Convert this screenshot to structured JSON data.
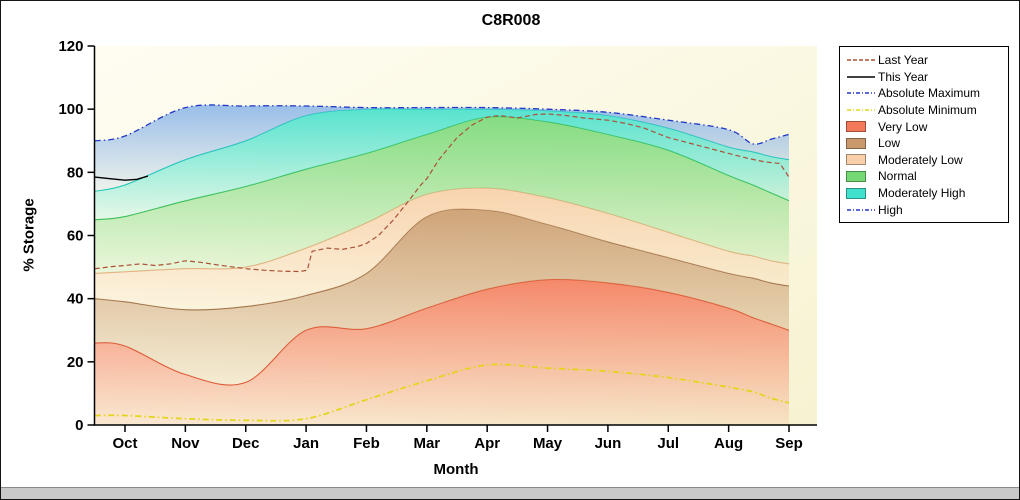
{
  "chart_data": {
    "type": "area",
    "title": "C8R008",
    "xlabel": "Month",
    "ylabel": "% Storage",
    "ylim": [
      0,
      120
    ],
    "x_tick_labels": [
      "Oct",
      "Nov",
      "Dec",
      "Jan",
      "Feb",
      "Mar",
      "Apr",
      "May",
      "Jun",
      "Jul",
      "Aug",
      "Sep"
    ],
    "y_tick_values": [
      0,
      20,
      40,
      60,
      80,
      100,
      120
    ],
    "band_x": [
      -0.5,
      0,
      1,
      2,
      3,
      4,
      5,
      6,
      7,
      8,
      9,
      10,
      10.4,
      10.7,
      11
    ],
    "bands": [
      {
        "name": "Very Low",
        "color": "#f4795a",
        "edge": "#e05535",
        "top": [
          26,
          25,
          16,
          13.5,
          30,
          30.5,
          37,
          43,
          46,
          45,
          42,
          37,
          34,
          32,
          30
        ]
      },
      {
        "name": "Low",
        "color": "#c9996b",
        "edge": "#9c6f45",
        "top": [
          40,
          39,
          36.5,
          37.5,
          41,
          48,
          66,
          68,
          63.5,
          58,
          53,
          48,
          46.5,
          45,
          44
        ]
      },
      {
        "name": "Moderately Low",
        "color": "#f8cfa8",
        "edge": "#eab183",
        "top": [
          48,
          48.5,
          49.5,
          50,
          56,
          64,
          73,
          75,
          72,
          67,
          61,
          55,
          53.5,
          52,
          51
        ]
      },
      {
        "name": "Normal",
        "color": "#74d874",
        "edge": "#3cbc50",
        "top": [
          65,
          66,
          71,
          75.5,
          81,
          86,
          92,
          97.5,
          96,
          92,
          87,
          79,
          76,
          73.5,
          71
        ]
      },
      {
        "name": "Moderately High",
        "color": "#40e0cc",
        "edge": "#16c8b4",
        "top": [
          74,
          76,
          84,
          90,
          98,
          100,
          100,
          100,
          99.5,
          98,
          94,
          88,
          86.5,
          85,
          84
        ]
      },
      {
        "name": "High",
        "color": "#8cb6e8",
        "edge": null,
        "top": [
          90,
          91.5,
          100.5,
          101,
          101,
          100.5,
          100.5,
          100.5,
          100,
          99,
          96.5,
          93.5,
          89,
          90.5,
          92
        ]
      }
    ],
    "lines": [
      {
        "name": "Absolute Minimum",
        "color": "#e4d51c",
        "style": "dashdot",
        "width": 1.8,
        "smooth": true,
        "x": [
          -0.5,
          0,
          1,
          2,
          3,
          4,
          5,
          6,
          7,
          8,
          9,
          10,
          10.4,
          10.7,
          11
        ],
        "y": [
          3,
          3,
          2,
          1.5,
          2,
          8,
          14,
          19,
          18,
          17,
          15,
          12,
          10.5,
          8.5,
          7
        ]
      },
      {
        "name": "Absolute Maximum",
        "color": "#2238c8",
        "style": "dashdot",
        "width": 1.3,
        "smooth": true,
        "x": [
          -0.5,
          0,
          1,
          2,
          3,
          4,
          5,
          6,
          7,
          8,
          9,
          10,
          10.4,
          10.7,
          11
        ],
        "y": [
          90,
          91.5,
          100.5,
          101,
          101,
          100.5,
          100.5,
          100.5,
          100,
          99,
          96.5,
          93.5,
          89,
          90.5,
          92
        ]
      },
      {
        "name": "Last Year",
        "color": "#aa5238",
        "style": "dashed",
        "width": 1.2,
        "smooth": false,
        "x": [
          -0.5,
          -0.2,
          0,
          0.25,
          0.5,
          0.75,
          1,
          1.25,
          1.5,
          1.8,
          2,
          2.3,
          2.6,
          2.9,
          3.02,
          3.1,
          3.35,
          3.6,
          3.85,
          4,
          4.2,
          4.45,
          4.7,
          4.9,
          5,
          5.2,
          5.5,
          5.75,
          6,
          6.2,
          6.5,
          6.8,
          7,
          7.3,
          7.6,
          8,
          8.3,
          8.6,
          9,
          9.3,
          9.6,
          10,
          10.3,
          10.6,
          10.85,
          11
        ],
        "y": [
          49.5,
          50.2,
          50.5,
          51,
          50.5,
          51,
          52,
          51.5,
          50.8,
          50,
          49.5,
          49,
          48.7,
          48.6,
          49,
          55,
          56,
          55.6,
          56.5,
          57.5,
          60,
          65,
          71,
          76,
          78,
          84,
          91,
          95,
          97.5,
          98,
          97.2,
          98.3,
          98.5,
          98,
          97.2,
          96.5,
          95.5,
          94,
          91,
          89.5,
          88,
          86,
          84.5,
          83.3,
          82.8,
          78.5
        ]
      },
      {
        "name": "This Year",
        "color": "#000000",
        "style": "solid",
        "width": 1.4,
        "smooth": false,
        "x": [
          -0.5,
          -0.25,
          0,
          0.2,
          0.38
        ],
        "y": [
          78.5,
          78,
          77.5,
          77.8,
          78.8
        ]
      }
    ],
    "legend": {
      "position": "top-right",
      "items": [
        {
          "label": "Last Year",
          "sample": "line-dashed",
          "color": "#aa5238"
        },
        {
          "label": "This Year",
          "sample": "line-solid",
          "color": "#000000"
        },
        {
          "label": "Absolute Maximum",
          "sample": "line-dashdot",
          "color": "#2238c8"
        },
        {
          "label": "Absolute Minimum",
          "sample": "line-dashdot",
          "color": "#e4d51c"
        },
        {
          "label": "Very Low",
          "sample": "patch",
          "color": "#f4795a"
        },
        {
          "label": "Low",
          "sample": "patch",
          "color": "#c9996b"
        },
        {
          "label": "Moderately Low",
          "sample": "patch",
          "color": "#f8cfa8"
        },
        {
          "label": "Normal",
          "sample": "patch",
          "color": "#74d874"
        },
        {
          "label": "Moderately High",
          "sample": "patch",
          "color": "#40e0cc"
        },
        {
          "label": "High",
          "sample": "line-dashdot",
          "color": "#2238c8"
        }
      ]
    }
  }
}
